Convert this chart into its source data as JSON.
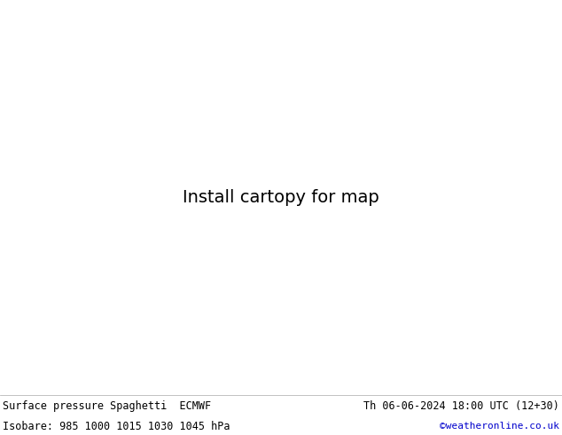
{
  "title_left": "Surface pressure Spaghetti  ECMWF",
  "title_right": "Th 06-06-2024 18:00 UTC (12+30)",
  "subtitle": "Isobare: 985 1000 1015 1030 1045 hPa",
  "credit": "©weatheronline.co.uk",
  "credit_color": "#0000cc",
  "land_color": "#c8e8a0",
  "sea_color": "#d8d8d8",
  "border_color": "#333333",
  "bottom_bar_color": "#ffffff",
  "bottom_text_color": "#000000",
  "figsize": [
    6.34,
    4.9
  ],
  "dpi": 100,
  "map_extent": [
    -12,
    30,
    43,
    60
  ],
  "spaghetti_colors": [
    "#808080",
    "#808080",
    "#808080",
    "#808080",
    "#808080",
    "#808080",
    "#808080",
    "#808080",
    "#808080",
    "#808080",
    "#808080",
    "#808080",
    "#808080",
    "#808080",
    "#808080",
    "#808080",
    "#808080",
    "#808080",
    "#808080",
    "#808080",
    "#ff00ff",
    "#ff8c00",
    "#ffd700",
    "#00bfff",
    "#ff1493",
    "#0000ff",
    "#00cc00",
    "#cc0000",
    "#ff6600",
    "#9900cc",
    "#aa00ff",
    "#00cccc",
    "#ff4400",
    "#00aa00",
    "#8800aa"
  ],
  "top_dense_colors": [
    "#808080",
    "#808080",
    "#808080",
    "#808080",
    "#808080",
    "#808080",
    "#808080",
    "#808080",
    "#808080",
    "#808080",
    "#808080",
    "#808080",
    "#808080",
    "#808080",
    "#808080",
    "#808080",
    "#808080",
    "#808080",
    "#808080",
    "#808080",
    "#ff00ff",
    "#ff8c00",
    "#ffd700",
    "#00bfff",
    "#ff1493",
    "#0000ff",
    "#9900cc",
    "#ff4400",
    "#00cc00",
    "#cc0000"
  ],
  "label_color_gray": "#555555",
  "label_color_purple": "#aa00aa",
  "label_color_orange": "#ff8c00",
  "label_color_teal": "#00aaaa",
  "label_fontsize": 5
}
